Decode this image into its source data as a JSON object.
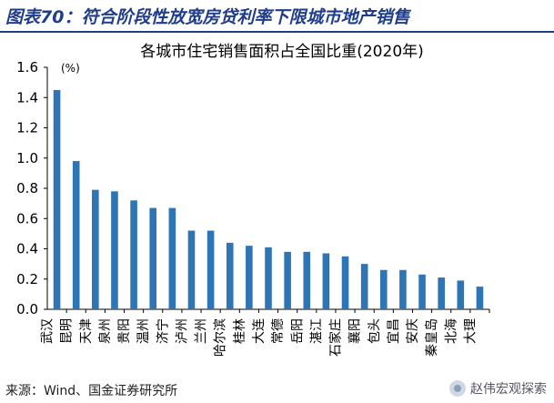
{
  "figure": {
    "title": "图表70：符合阶段性放宽房贷利率下限城市地产销售",
    "source": "来源：Wind、国金证券研究所",
    "watermark": "赵伟宏观探索"
  },
  "colors": {
    "bar": "#2e75b6",
    "header": "#1f3d8a",
    "axis": "#000000"
  },
  "chart_data": {
    "type": "bar",
    "title": "各城市住宅销售面积占全国比重(2020年)",
    "unit_label": "(%)",
    "xlabel": "",
    "ylabel": "",
    "ylim": [
      0,
      1.6
    ],
    "yticks": [
      "0.0",
      "0.2",
      "0.4",
      "0.6",
      "0.8",
      "1.0",
      "1.2",
      "1.4",
      "1.6"
    ],
    "grid": false,
    "legend": "none",
    "categories": [
      "武汉",
      "昆明",
      "天津",
      "泉州",
      "贵阳",
      "温州",
      "济宁",
      "泸州",
      "兰州",
      "哈尔滨",
      "桂林",
      "大连",
      "常德",
      "岳阳",
      "湛江",
      "石家庄",
      "襄阳",
      "包头",
      "宜昌",
      "安庆",
      "秦皇岛",
      "北海",
      "大理"
    ],
    "values": [
      1.45,
      0.98,
      0.79,
      0.78,
      0.72,
      0.67,
      0.67,
      0.52,
      0.52,
      0.44,
      0.42,
      0.41,
      0.38,
      0.38,
      0.37,
      0.35,
      0.3,
      0.26,
      0.26,
      0.23,
      0.21,
      0.19,
      0.15
    ]
  }
}
